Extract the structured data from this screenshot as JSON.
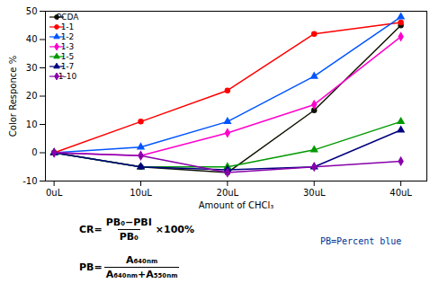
{
  "chart_data": {
    "type": "line",
    "xlabel": "Amount of CHCl₃",
    "ylabel": "Color Responce %",
    "x": [
      0,
      10,
      20,
      30,
      40
    ],
    "series": [
      {
        "name": "PCDA",
        "color": "#111100",
        "marker": "circle",
        "values": [
          0,
          -5,
          -7,
          15,
          45
        ]
      },
      {
        "name": "1-1",
        "color": "#ff0000",
        "marker": "circle",
        "values": [
          0,
          11,
          22,
          42,
          46
        ]
      },
      {
        "name": "1-2",
        "color": "#0055ff",
        "marker": "triangle",
        "values": [
          0,
          2,
          11,
          27,
          48
        ]
      },
      {
        "name": "1-3",
        "color": "#ff00cc",
        "marker": "diamond",
        "values": [
          0,
          -1,
          7,
          17,
          41
        ]
      },
      {
        "name": "1-5",
        "color": "#009900",
        "marker": "triangle",
        "values": [
          0,
          -5,
          -5,
          1,
          11
        ]
      },
      {
        "name": "1-7",
        "color": "#000080",
        "marker": "triangle",
        "values": [
          0,
          -5,
          -6,
          -5,
          8
        ]
      },
      {
        "name": "1-10",
        "color": "#8800aa",
        "marker": "diamond",
        "values": [
          0,
          -1,
          -7,
          -5,
          -3
        ]
      }
    ],
    "xlim": [
      -1,
      43
    ],
    "xticks": [
      {
        "value": 0,
        "label": "0uL"
      },
      {
        "value": 10,
        "label": "10uL"
      },
      {
        "value": 20,
        "label": "20uL"
      },
      {
        "value": 30,
        "label": "30uL"
      },
      {
        "value": 40,
        "label": "40uL"
      }
    ],
    "ylim": [
      -10,
      50
    ],
    "yticks": [
      -10,
      0,
      10,
      20,
      30,
      40,
      50
    ],
    "grid": false,
    "legend": "upper left",
    "annotations": [
      {
        "before": "CR=",
        "numerator": "PB₀−PBI",
        "denominator": "PB₀",
        "after": "×100%"
      },
      {
        "before": "PB=",
        "numerator": "A₆₄₀ₙₘ",
        "denominator": "A₆₄₀ₙₘ+A₅₅₀ₙₘ"
      },
      {
        "text": "PB=Percent blue",
        "color": "#003399"
      }
    ]
  }
}
